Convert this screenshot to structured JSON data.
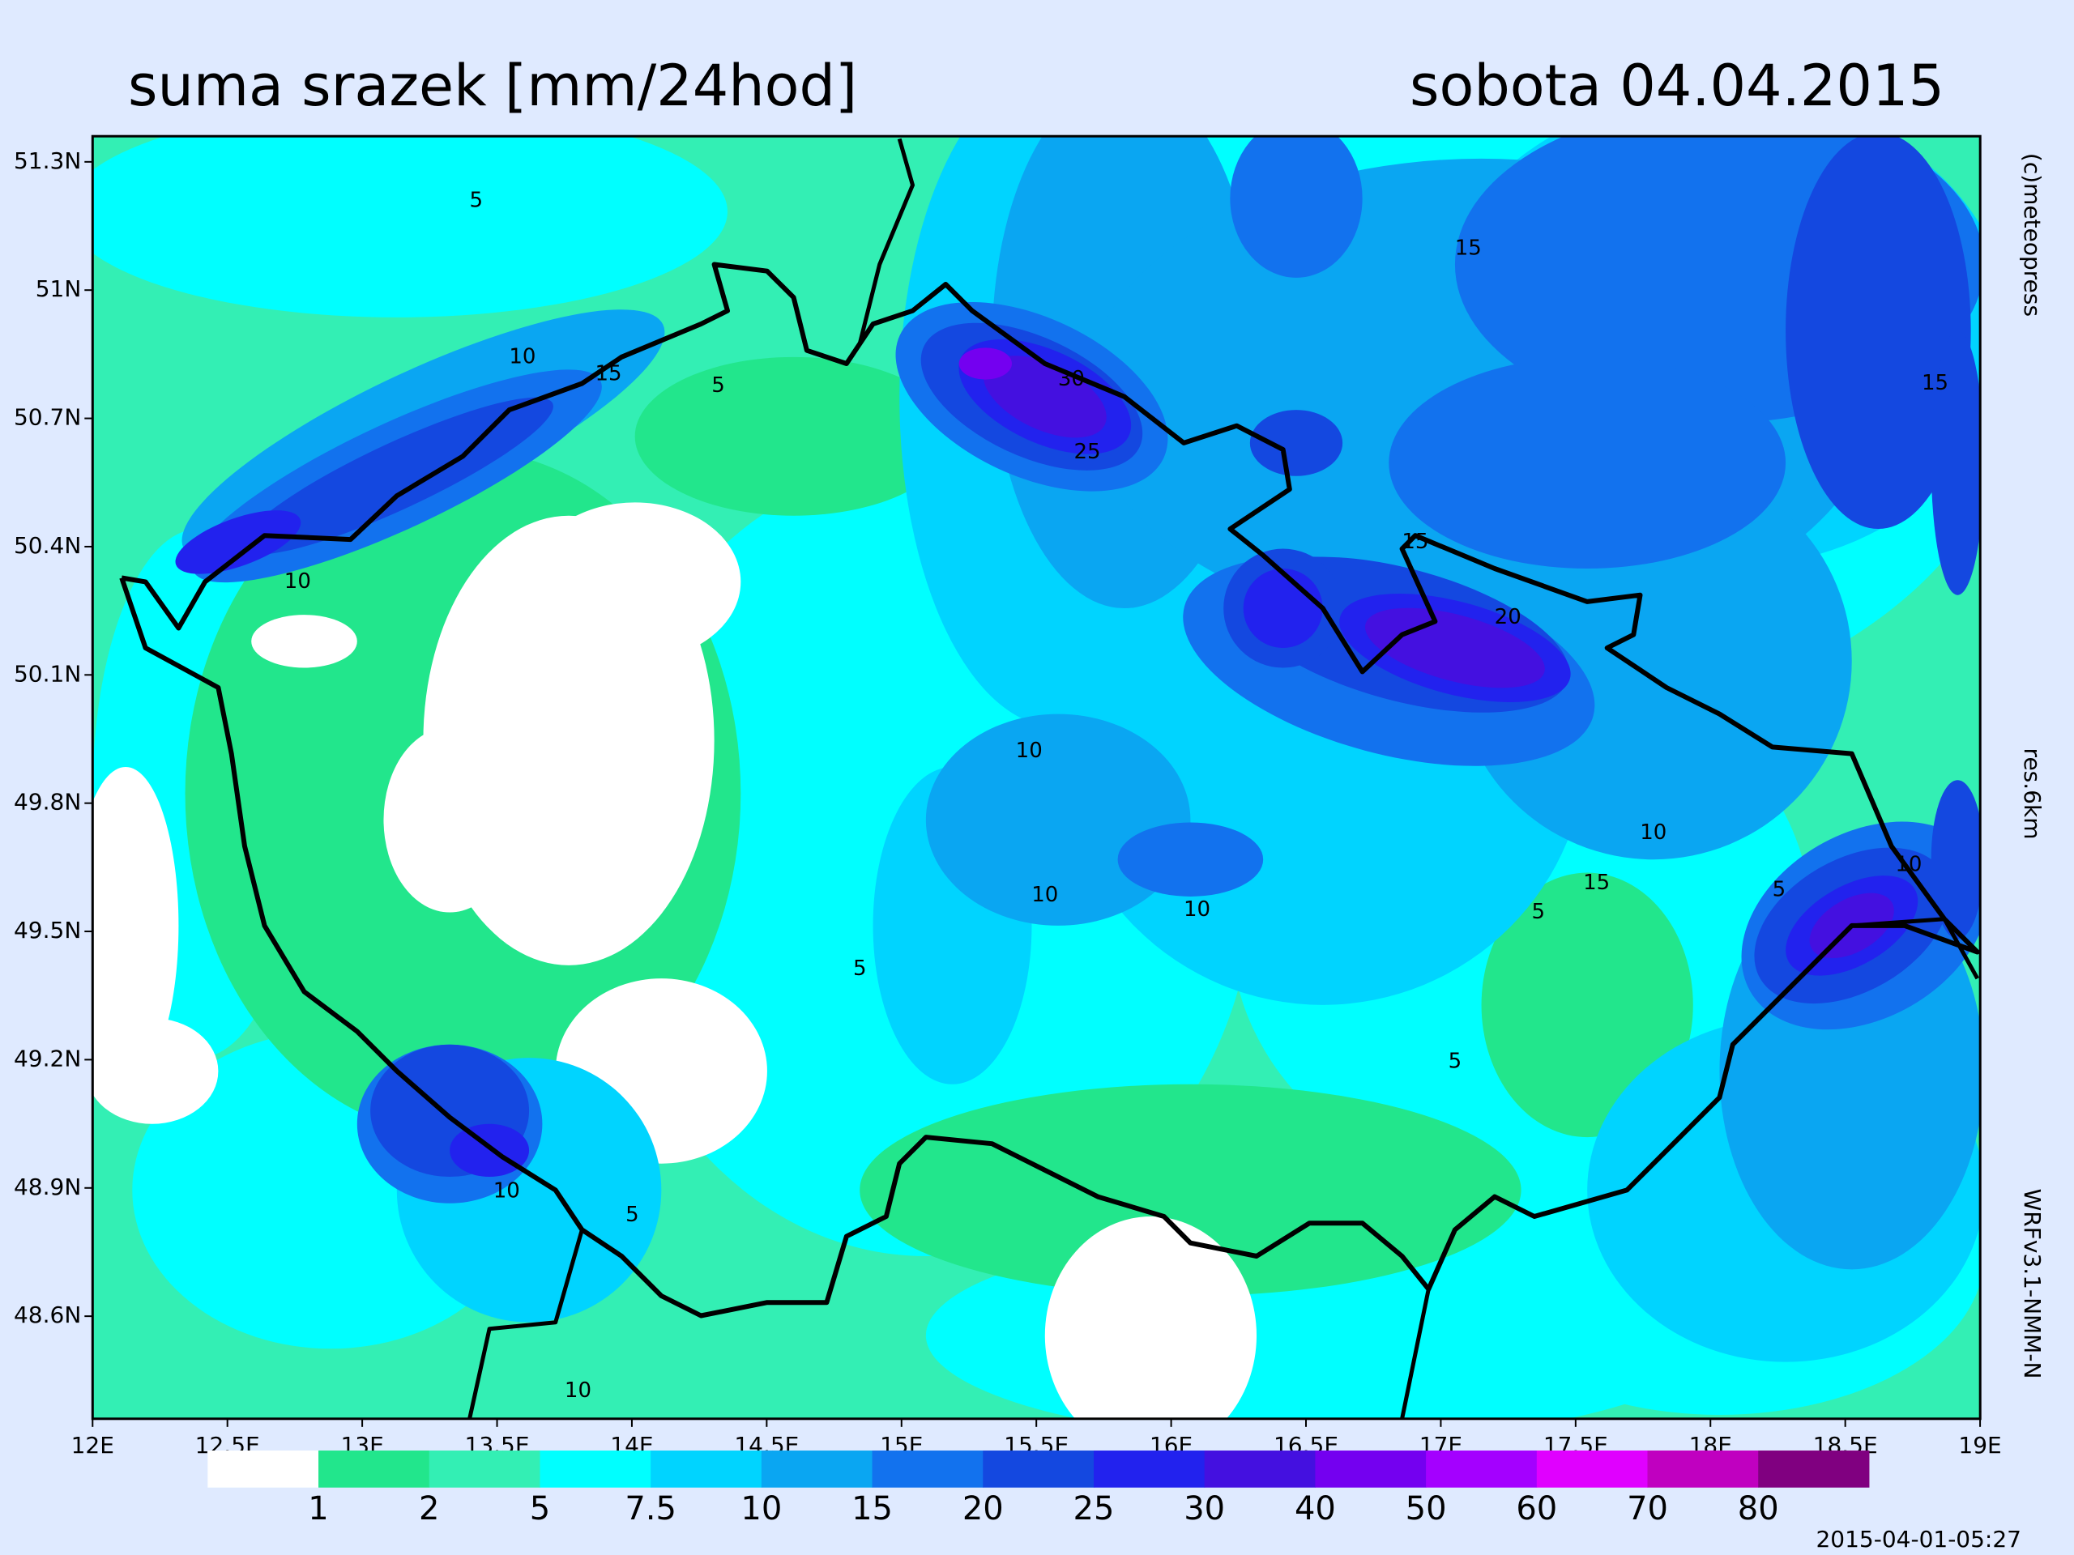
{
  "header": {
    "title": "suma srazek [mm/24hod]",
    "date": "sobota 04.04.2015"
  },
  "map": {
    "xlim": [
      12,
      19
    ],
    "ylim": [
      48.36,
      51.36
    ],
    "xticks": [
      {
        "value": 12,
        "label": "12E"
      },
      {
        "value": 12.5,
        "label": "12.5E"
      },
      {
        "value": 13,
        "label": "13E"
      },
      {
        "value": 13.5,
        "label": "13.5E"
      },
      {
        "value": 14,
        "label": "14E"
      },
      {
        "value": 14.5,
        "label": "14.5E"
      },
      {
        "value": 15,
        "label": "15E"
      },
      {
        "value": 15.5,
        "label": "15.5E"
      },
      {
        "value": 16,
        "label": "16E"
      },
      {
        "value": 16.5,
        "label": "16.5E"
      },
      {
        "value": 17,
        "label": "17E"
      },
      {
        "value": 17.5,
        "label": "17.5E"
      },
      {
        "value": 18,
        "label": "18E"
      },
      {
        "value": 18.5,
        "label": "18.5E"
      },
      {
        "value": 19,
        "label": "19E"
      }
    ],
    "yticks": [
      {
        "value": 48.6,
        "label": "48.6N"
      },
      {
        "value": 48.9,
        "label": "48.9N"
      },
      {
        "value": 49.2,
        "label": "49.2N"
      },
      {
        "value": 49.5,
        "label": "49.5N"
      },
      {
        "value": 49.8,
        "label": "49.8N"
      },
      {
        "value": 50.1,
        "label": "50.1N"
      },
      {
        "value": 50.4,
        "label": "50.4N"
      },
      {
        "value": 50.7,
        "label": "50.7N"
      },
      {
        "value": 51,
        "label": "51N"
      },
      {
        "value": 51.3,
        "label": "51.3N"
      }
    ],
    "contour_labels": [
      5,
      10,
      15,
      5,
      10,
      30,
      25,
      15,
      15,
      15,
      20,
      10,
      10,
      10,
      15,
      5,
      10,
      10,
      5,
      5,
      5,
      10,
      5,
      10
    ]
  },
  "legend": {
    "levels": [
      1,
      2,
      5,
      7.5,
      10,
      15,
      20,
      25,
      30,
      40,
      50,
      60,
      70,
      80
    ],
    "colors": [
      "#ffffff",
      "#22e68c",
      "#33efb4",
      "#00ffff",
      "#00d4ff",
      "#0aa6f2",
      "#1272ee",
      "#1448e0",
      "#2222ee",
      "#4410e0",
      "#7400f0",
      "#a400ff",
      "#e000ff",
      "#c000c0",
      "#800080"
    ]
  },
  "side_notes": {
    "copyright": "(c)meteopress",
    "resolution": "res.6km",
    "model": "WRFv3.1-NMM-N",
    "timestamp": "2015-04-01-05:27"
  }
}
